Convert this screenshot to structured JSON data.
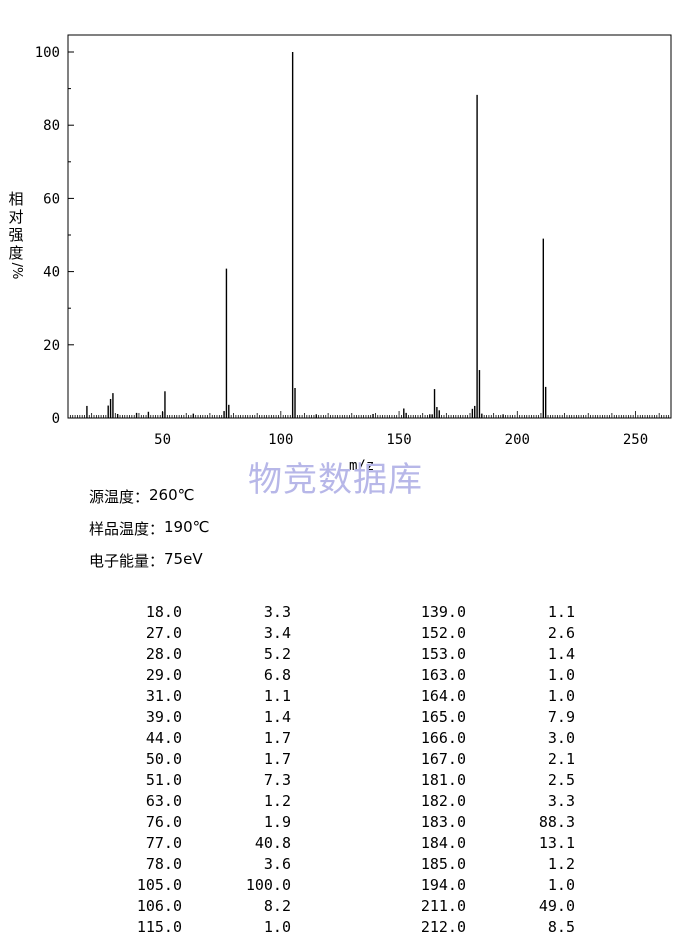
{
  "chart_data": {
    "type": "bar",
    "title": "",
    "xlabel": "m/z",
    "ylabel": [
      "相",
      "对",
      "强",
      "度",
      "/%"
    ],
    "xlim": [
      10,
      265
    ],
    "ylim": [
      0,
      100
    ],
    "xticks": [
      50,
      100,
      150,
      200,
      250
    ],
    "yticks": [
      0,
      20,
      40,
      60,
      80,
      100
    ],
    "grid": false,
    "bar_color": "#000000",
    "x": [
      18,
      27,
      28,
      29,
      31,
      39,
      44,
      50,
      51,
      63,
      76,
      77,
      78,
      105,
      106,
      115,
      139,
      152,
      153,
      163,
      164,
      165,
      166,
      167,
      181,
      182,
      183,
      184,
      185,
      194,
      211,
      212
    ],
    "values": [
      3.3,
      3.4,
      5.2,
      6.8,
      1.1,
      1.4,
      1.7,
      1.7,
      7.3,
      1.2,
      1.9,
      40.8,
      3.6,
      100.0,
      8.2,
      1.0,
      1.1,
      2.6,
      1.4,
      1.0,
      1.0,
      7.9,
      3.0,
      2.1,
      2.5,
      3.3,
      88.3,
      13.1,
      1.2,
      1.0,
      49.0,
      8.5
    ]
  },
  "watermark": "物竞数据库",
  "conditions": [
    {
      "label": "源温度：",
      "value": "260℃"
    },
    {
      "label": "样品温度：",
      "value": "190℃"
    },
    {
      "label": "电子能量：",
      "value": "75eV"
    }
  ],
  "table_left": [
    [
      "18.0",
      "3.3"
    ],
    [
      "27.0",
      "3.4"
    ],
    [
      "28.0",
      "5.2"
    ],
    [
      "29.0",
      "6.8"
    ],
    [
      "31.0",
      "1.1"
    ],
    [
      "39.0",
      "1.4"
    ],
    [
      "44.0",
      "1.7"
    ],
    [
      "50.0",
      "1.7"
    ],
    [
      "51.0",
      "7.3"
    ],
    [
      "63.0",
      "1.2"
    ],
    [
      "76.0",
      "1.9"
    ],
    [
      "77.0",
      "40.8"
    ],
    [
      "78.0",
      "3.6"
    ],
    [
      "105.0",
      "100.0"
    ],
    [
      "106.0",
      "8.2"
    ],
    [
      "115.0",
      "1.0"
    ]
  ],
  "table_right": [
    [
      "139.0",
      "1.1"
    ],
    [
      "152.0",
      "2.6"
    ],
    [
      "153.0",
      "1.4"
    ],
    [
      "163.0",
      "1.0"
    ],
    [
      "164.0",
      "1.0"
    ],
    [
      "165.0",
      "7.9"
    ],
    [
      "166.0",
      "3.0"
    ],
    [
      "167.0",
      "2.1"
    ],
    [
      "181.0",
      "2.5"
    ],
    [
      "182.0",
      "3.3"
    ],
    [
      "183.0",
      "88.3"
    ],
    [
      "184.0",
      "13.1"
    ],
    [
      "185.0",
      "1.2"
    ],
    [
      "194.0",
      "1.0"
    ],
    [
      "211.0",
      "49.0"
    ],
    [
      "212.0",
      "8.5"
    ]
  ]
}
